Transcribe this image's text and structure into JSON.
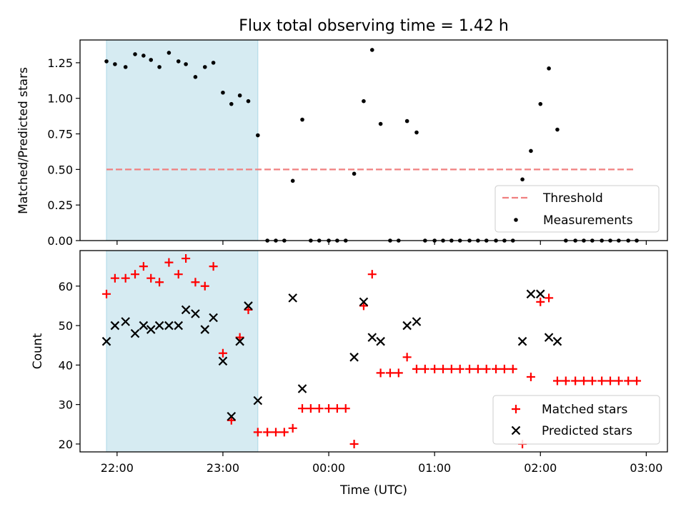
{
  "chart_data": {
    "title": "Flux total observing time = 1.42 h",
    "xlabel": "Time (UTC)",
    "x_unit": "hours after 22:00 UTC",
    "xlim": [
      -0.35,
      5.2
    ],
    "xticks": [
      0,
      1,
      2,
      3,
      4,
      5
    ],
    "xtick_labels": [
      "22:00",
      "23:00",
      "00:00",
      "01:00",
      "02:00",
      "03:00"
    ],
    "span": {
      "x0": -0.1,
      "x1": 1.33,
      "color": "#add8e6"
    },
    "colors": {
      "threshold": "#f08080",
      "measurements": "#000000",
      "matched": "#ff0000",
      "predicted": "#000000"
    },
    "top": {
      "type": "scatter",
      "ylabel": "Matched/Predicted stars",
      "ylim": [
        0,
        1.41
      ],
      "yticks": [
        0.0,
        0.25,
        0.5,
        0.75,
        1.0,
        1.25
      ],
      "ytick_labels": [
        "0.00",
        "0.25",
        "0.50",
        "0.75",
        "1.00",
        "1.25"
      ],
      "threshold": {
        "y": 0.5,
        "x0": -0.1,
        "x1": 4.9,
        "label": "Threshold"
      },
      "legend": {
        "position": "lower right",
        "entries": [
          "Threshold",
          "Measurements"
        ]
      },
      "series": {
        "name": "Measurements",
        "x": [
          -0.1,
          -0.02,
          0.08,
          0.17,
          0.25,
          0.32,
          0.4,
          0.49,
          0.58,
          0.65,
          0.74,
          0.83,
          0.91,
          1.0,
          1.08,
          1.16,
          1.24,
          1.33,
          1.42,
          1.5,
          1.58,
          1.66,
          1.75,
          1.83,
          1.91,
          2.0,
          2.08,
          2.16,
          2.24,
          2.33,
          2.41,
          2.49,
          2.58,
          2.66,
          2.74,
          2.83,
          2.91,
          3.0,
          3.08,
          3.16,
          3.24,
          3.33,
          3.41,
          3.49,
          3.58,
          3.66,
          3.74,
          3.83,
          3.91,
          4.0,
          4.08,
          4.16,
          4.24,
          4.33,
          4.41,
          4.49,
          4.58,
          4.66,
          4.74,
          4.83,
          4.91
        ],
        "y": [
          1.26,
          1.24,
          1.22,
          1.31,
          1.3,
          1.27,
          1.22,
          1.32,
          1.26,
          1.24,
          1.15,
          1.22,
          1.25,
          1.04,
          0.96,
          1.02,
          0.98,
          0.74,
          0.0,
          0.0,
          0.0,
          0.42,
          0.85,
          0.0,
          0.0,
          0.0,
          0.0,
          0.0,
          0.47,
          0.98,
          1.34,
          0.82,
          0.0,
          0.0,
          0.84,
          0.76,
          0.0,
          0.0,
          0.0,
          0.0,
          0.0,
          0.0,
          0.0,
          0.0,
          0.0,
          0.0,
          0.0,
          0.43,
          0.63,
          0.96,
          1.21,
          0.78,
          0.0,
          0.0,
          0.0,
          0.0,
          0.0,
          0.0,
          0.0,
          0.0,
          0.0
        ]
      }
    },
    "bottom": {
      "type": "scatter",
      "ylabel": "Count",
      "ylim": [
        18,
        69
      ],
      "yticks": [
        20,
        30,
        40,
        50,
        60
      ],
      "ytick_labels": [
        "20",
        "30",
        "40",
        "50",
        "60"
      ],
      "legend": {
        "position": "lower right",
        "entries": [
          "Matched stars",
          "Predicted stars"
        ]
      },
      "series": [
        {
          "name": "Matched stars",
          "marker": "+",
          "x": [
            -0.1,
            -0.02,
            0.08,
            0.17,
            0.25,
            0.32,
            0.4,
            0.49,
            0.58,
            0.65,
            0.74,
            0.83,
            0.91,
            1.0,
            1.08,
            1.16,
            1.24,
            1.33,
            1.42,
            1.5,
            1.58,
            1.66,
            1.75,
            1.83,
            1.91,
            2.0,
            2.08,
            2.16,
            2.24,
            2.33,
            2.41,
            2.49,
            2.58,
            2.66,
            2.74,
            2.83,
            2.91,
            3.0,
            3.08,
            3.16,
            3.24,
            3.33,
            3.41,
            3.49,
            3.58,
            3.66,
            3.74,
            3.83,
            3.91,
            4.0,
            4.08,
            4.16,
            4.24,
            4.33,
            4.41,
            4.49,
            4.58,
            4.66,
            4.74,
            4.83,
            4.91
          ],
          "y": [
            58,
            62,
            62,
            63,
            65,
            62,
            61,
            66,
            63,
            67,
            61,
            60,
            65,
            43,
            26,
            47,
            54,
            23,
            23,
            23,
            23,
            24,
            29,
            29,
            29,
            29,
            29,
            29,
            20,
            55,
            63,
            38,
            38,
            38,
            42,
            39,
            39,
            39,
            39,
            39,
            39,
            39,
            39,
            39,
            39,
            39,
            39,
            20,
            37,
            56,
            57,
            36,
            36,
            36,
            36,
            36,
            36,
            36,
            36,
            36,
            36
          ]
        },
        {
          "name": "Predicted stars",
          "marker": "x",
          "x": [
            -0.1,
            -0.02,
            0.08,
            0.17,
            0.25,
            0.32,
            0.4,
            0.49,
            0.58,
            0.65,
            0.74,
            0.83,
            0.91,
            1.0,
            1.08,
            1.16,
            1.24,
            1.33,
            1.66,
            1.75,
            2.24,
            2.33,
            2.41,
            2.49,
            2.74,
            2.83,
            3.83,
            3.91,
            4.0,
            4.08,
            4.16
          ],
          "y": [
            46,
            50,
            51,
            48,
            50,
            49,
            50,
            50,
            50,
            54,
            53,
            49,
            52,
            41,
            27,
            46,
            55,
            31,
            57,
            34,
            42,
            56,
            47,
            46,
            50,
            51,
            46,
            58,
            58,
            47,
            46
          ]
        }
      ]
    }
  }
}
